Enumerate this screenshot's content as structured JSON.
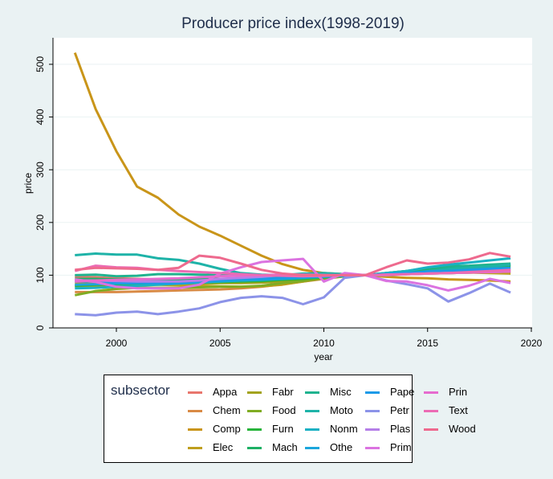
{
  "chart_data": {
    "type": "line",
    "title": "Producer price index(1998-2019)",
    "xlabel": "year",
    "ylabel": "price",
    "xlim": [
      1997,
      2020
    ],
    "ylim": [
      0,
      550
    ],
    "xticks": [
      2000,
      2005,
      2010,
      2015,
      2020
    ],
    "yticks": [
      0,
      100,
      200,
      300,
      400,
      500
    ],
    "grid": true,
    "legend_title": "subsector",
    "legend_position": "bottom",
    "x": [
      1998,
      1999,
      2000,
      2001,
      2002,
      2003,
      2004,
      2005,
      2006,
      2007,
      2008,
      2009,
      2010,
      2011,
      2012,
      2013,
      2014,
      2015,
      2016,
      2017,
      2018,
      2019
    ],
    "series": [
      {
        "name": "Appa",
        "color": "#e8766d",
        "values": [
          97,
          96,
          94,
          93,
          92,
          91,
          92,
          93,
          94,
          95,
          97,
          98,
          99,
          100,
          100,
          101,
          102,
          103,
          104,
          105,
          106,
          107
        ]
      },
      {
        "name": "Chem",
        "color": "#d98a45",
        "values": [
          68,
          68,
          68,
          69,
          70,
          71,
          72,
          73,
          75,
          78,
          83,
          88,
          93,
          98,
          100,
          103,
          106,
          108,
          108,
          109,
          110,
          111
        ]
      },
      {
        "name": "Comp",
        "color": "#c99519",
        "values": [
          522,
          415,
          335,
          268,
          247,
          215,
          192,
          175,
          156,
          137,
          121,
          110,
          104,
          102,
          100,
          97,
          95,
          94,
          92,
          91,
          90,
          88
        ]
      },
      {
        "name": "Elec",
        "color": "#bf9e1d",
        "values": [
          85,
          85,
          84,
          83,
          82,
          81,
          80,
          79,
          78,
          79,
          82,
          88,
          94,
          98,
          100,
          101,
          103,
          104,
          104,
          105,
          104,
          103
        ]
      },
      {
        "name": "Fabr",
        "color": "#a3a31e",
        "values": [
          79,
          80,
          81,
          82,
          83,
          84,
          84,
          85,
          85,
          86,
          88,
          92,
          96,
          99,
          100,
          101,
          102,
          104,
          104,
          105,
          106,
          107
        ]
      },
      {
        "name": "Food",
        "color": "#80ac23",
        "values": [
          62,
          70,
          74,
          76,
          76,
          76,
          77,
          78,
          78,
          80,
          85,
          89,
          94,
          98,
          100,
          103,
          108,
          110,
          110,
          112,
          114,
          116
        ]
      },
      {
        "name": "Furn",
        "color": "#28b43b",
        "values": [
          80,
          82,
          83,
          84,
          85,
          85,
          86,
          87,
          88,
          89,
          91,
          93,
          96,
          99,
          100,
          103,
          106,
          110,
          112,
          114,
          116,
          118
        ]
      },
      {
        "name": "Mach",
        "color": "#1eb065",
        "values": [
          93,
          93,
          92,
          92,
          92,
          92,
          92,
          93,
          93,
          94,
          96,
          97,
          98,
          99,
          100,
          104,
          108,
          112,
          115,
          117,
          118,
          120
        ]
      },
      {
        "name": "Misc",
        "color": "#20b38f",
        "values": [
          100,
          101,
          98,
          99,
          102,
          102,
          101,
          100,
          99,
          100,
          101,
          99,
          99,
          99,
          100,
          104,
          108,
          114,
          117,
          118,
          120,
          122
        ]
      },
      {
        "name": "Moto",
        "color": "#1eb3a8",
        "values": [
          138,
          141,
          139,
          139,
          132,
          129,
          122,
          112,
          104,
          101,
          100,
          103,
          104,
          102,
          100,
          101,
          103,
          108,
          112,
          114,
          116,
          120
        ]
      },
      {
        "name": "Nonm",
        "color": "#1bb1c4",
        "values": [
          75,
          76,
          78,
          80,
          82,
          84,
          86,
          88,
          90,
          92,
          95,
          97,
          99,
          100,
          100,
          104,
          108,
          115,
          120,
          124,
          128,
          132
        ]
      },
      {
        "name": "Othe",
        "color": "#1ba6dc",
        "values": [
          82,
          83,
          84,
          85,
          86,
          87,
          88,
          89,
          90,
          91,
          93,
          95,
          97,
          99,
          100,
          101,
          103,
          105,
          107,
          108,
          110,
          112
        ]
      },
      {
        "name": "Pape",
        "color": "#1b9ae8",
        "values": [
          88,
          88,
          87,
          86,
          85,
          85,
          88,
          91,
          93,
          93,
          95,
          96,
          98,
          99,
          100,
          102,
          104,
          107,
          108,
          110,
          112,
          114
        ]
      },
      {
        "name": "Petr",
        "color": "#8c93e8",
        "values": [
          26,
          24,
          29,
          31,
          26,
          31,
          37,
          49,
          57,
          60,
          57,
          45,
          58,
          95,
          100,
          90,
          83,
          75,
          50,
          66,
          84,
          67
        ]
      },
      {
        "name": "Plas",
        "color": "#b57fe8",
        "values": [
          90,
          90,
          89,
          88,
          88,
          88,
          90,
          93,
          95,
          97,
          100,
          100,
          100,
          100,
          100,
          100,
          102,
          103,
          104,
          105,
          106,
          107
        ]
      },
      {
        "name": "Prim",
        "color": "#db73e0",
        "values": [
          92,
          87,
          78,
          75,
          75,
          75,
          82,
          103,
          115,
          125,
          128,
          131,
          88,
          104,
          100,
          89,
          88,
          81,
          71,
          80,
          93,
          85
        ]
      },
      {
        "name": "Prin",
        "color": "#e66bcf",
        "values": [
          88,
          90,
          91,
          92,
          93,
          94,
          96,
          98,
          99,
          100,
          101,
          101,
          100,
          100,
          100,
          101,
          102,
          103,
          104,
          105,
          106,
          107
        ]
      },
      {
        "name": "Text",
        "color": "#ec6bb4",
        "values": [
          108,
          118,
          115,
          114,
          110,
          108,
          106,
          104,
          102,
          100,
          99,
          98,
          99,
          100,
          100,
          101,
          102,
          103,
          104,
          106,
          108,
          110
        ]
      },
      {
        "name": "Wood",
        "color": "#ee6a8e",
        "values": [
          110,
          114,
          113,
          112,
          110,
          114,
          137,
          133,
          122,
          110,
          103,
          100,
          100,
          100,
          100,
          115,
          128,
          122,
          124,
          130,
          142,
          135
        ]
      }
    ]
  }
}
